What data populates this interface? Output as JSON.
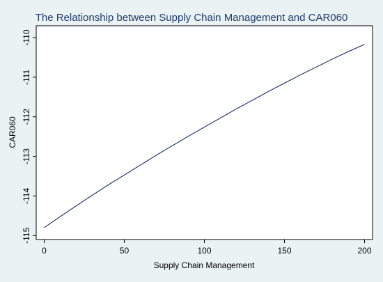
{
  "chart_data": {
    "type": "line",
    "title": "The Relationship between Supply Chain Management and CAR060",
    "xlabel": "Supply Chain Management",
    "ylabel": "CAR060",
    "xlim": [
      -5,
      205
    ],
    "ylim": [
      -115.1,
      -109.7
    ],
    "xticks": [
      0,
      50,
      100,
      150,
      200
    ],
    "xtick_labels": [
      "0",
      "50",
      "100",
      "150",
      "200"
    ],
    "yticks": [
      -115,
      -114,
      -113,
      -112,
      -111,
      -110
    ],
    "ytick_labels": [
      "-115",
      "-114",
      "-113",
      "-112",
      "-111",
      "-110"
    ],
    "grid": false,
    "series": [
      {
        "x": [
          0,
          10,
          20,
          30,
          40,
          50,
          60,
          70,
          80,
          90,
          100,
          110,
          120,
          130,
          140,
          150,
          160,
          170,
          180,
          190,
          200
        ],
        "y": [
          -114.8,
          -114.52,
          -114.25,
          -113.98,
          -113.72,
          -113.47,
          -113.22,
          -112.97,
          -112.73,
          -112.49,
          -112.26,
          -112.03,
          -111.8,
          -111.58,
          -111.36,
          -111.15,
          -110.94,
          -110.74,
          -110.54,
          -110.35,
          -110.17
        ]
      }
    ],
    "colors": {
      "background": "#eaf2f3",
      "plot": "#ffffff",
      "line": "#1f3b6e",
      "title": "#1f3b6e"
    }
  }
}
